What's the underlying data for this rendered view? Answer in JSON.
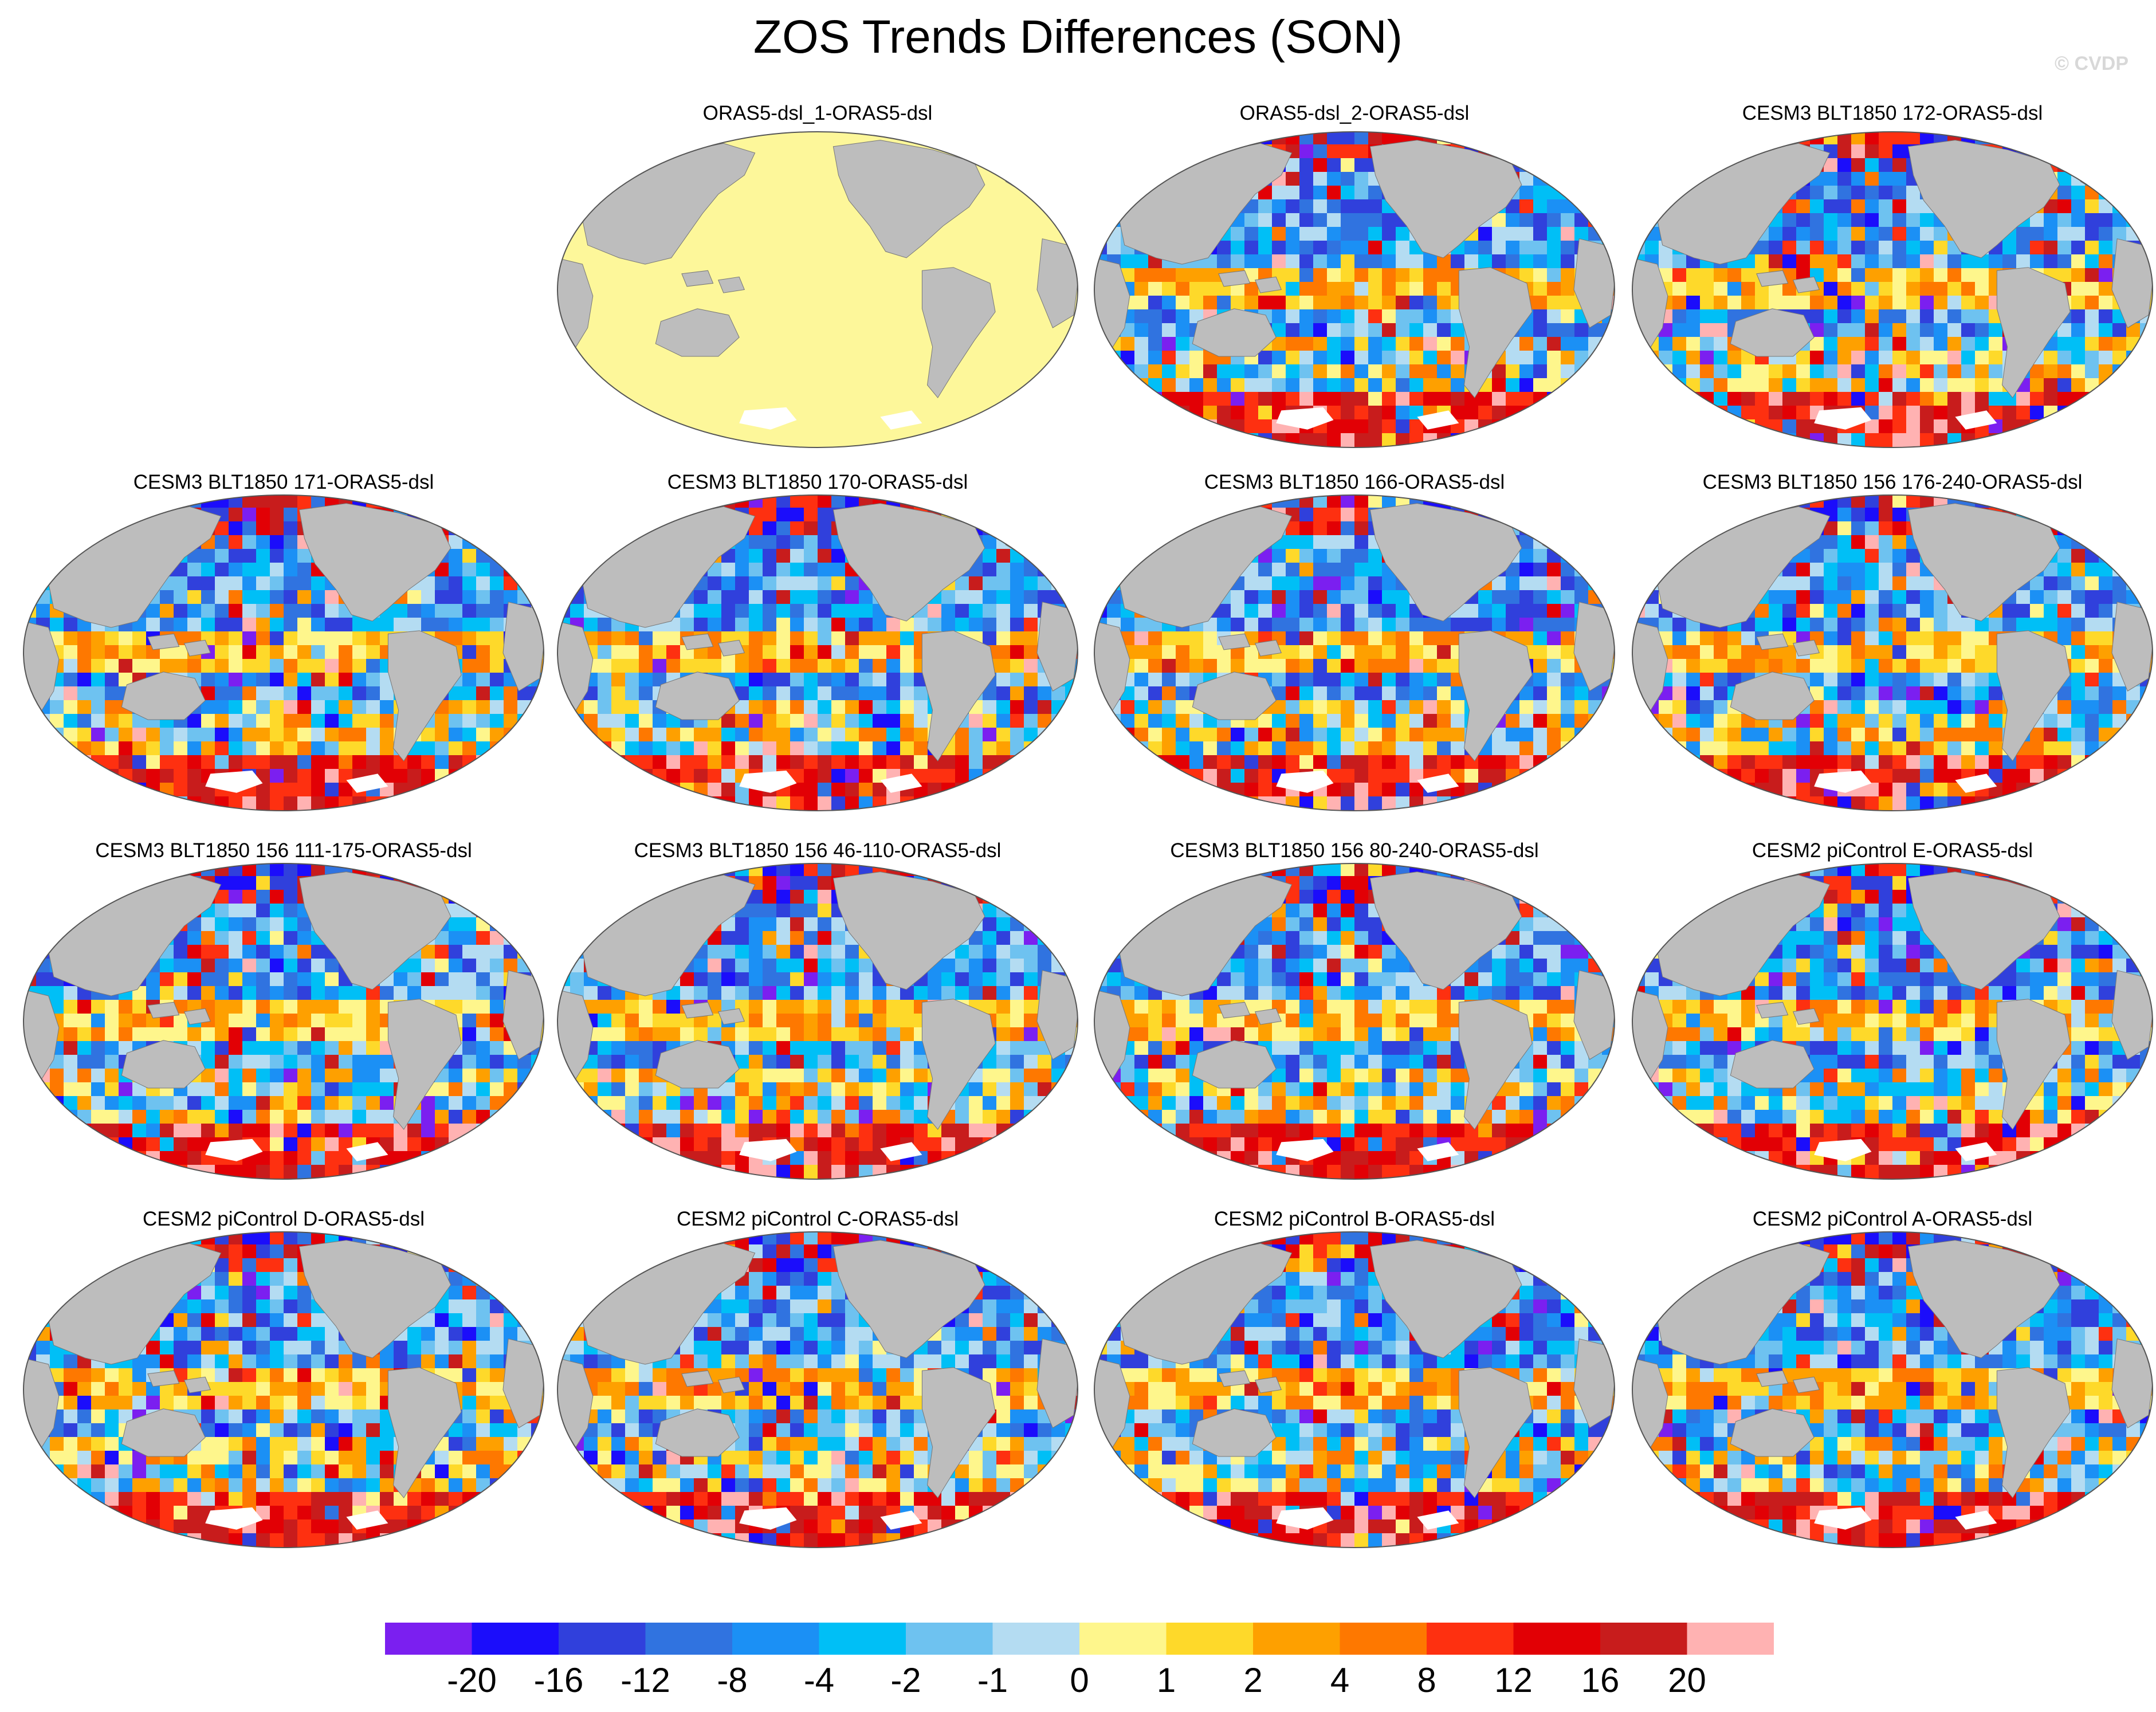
{
  "title": "ZOS Trends Differences (SON)",
  "watermark": "© CVDP",
  "panels": [
    {
      "id": "p01",
      "title": "ORAS5-dsl_1-ORAS5-dsl",
      "style": "flat"
    },
    {
      "id": "p02",
      "title": "ORAS5-dsl_2-ORAS5-dsl",
      "style": "mixed"
    },
    {
      "id": "p03",
      "title": "CESM3 BLT1850 172-ORAS5-dsl",
      "style": "mixed"
    },
    {
      "id": "p04",
      "title": "CESM3 BLT1850 171-ORAS5-dsl",
      "style": "mixed"
    },
    {
      "id": "p05",
      "title": "CESM3 BLT1850 170-ORAS5-dsl",
      "style": "mixed"
    },
    {
      "id": "p06",
      "title": "CESM3 BLT1850 166-ORAS5-dsl",
      "style": "mixed"
    },
    {
      "id": "p07",
      "title": "CESM3 BLT1850 156 176-240-ORAS5-dsl",
      "style": "mixed"
    },
    {
      "id": "p08",
      "title": "CESM3 BLT1850 156 111-175-ORAS5-dsl",
      "style": "mixed"
    },
    {
      "id": "p09",
      "title": "CESM3 BLT1850 156 46-110-ORAS5-dsl",
      "style": "mixed"
    },
    {
      "id": "p10",
      "title": "CESM3 BLT1850 156 80-240-ORAS5-dsl",
      "style": "mixed"
    },
    {
      "id": "p11",
      "title": "CESM2 piControl E-ORAS5-dsl",
      "style": "mixed"
    },
    {
      "id": "p12",
      "title": "CESM2 piControl D-ORAS5-dsl",
      "style": "mixed"
    },
    {
      "id": "p13",
      "title": "CESM2 piControl C-ORAS5-dsl",
      "style": "mixed"
    },
    {
      "id": "p14",
      "title": "CESM2 piControl B-ORAS5-dsl",
      "style": "mixed"
    },
    {
      "id": "p15",
      "title": "CESM2 piControl A-ORAS5-dsl",
      "style": "mixed"
    }
  ],
  "colorbar": {
    "colors": [
      "#7b1ff0",
      "#1b0dfb",
      "#3040dc",
      "#3073e0",
      "#1b90f5",
      "#00bff6",
      "#6ec2f0",
      "#b4dcf2",
      "#fef68c",
      "#fed92a",
      "#fea000",
      "#fe7800",
      "#fe3010",
      "#e20005",
      "#c81c1c",
      "#ffb2b2"
    ],
    "labels": [
      "-20",
      "-16",
      "-12",
      "-8",
      "-4",
      "-2",
      "-1",
      "0",
      "1",
      "2",
      "4",
      "8",
      "12",
      "16",
      "20"
    ]
  },
  "colors": {
    "land": "#bdbdbd",
    "flat_ocean": "#fdf79a",
    "ice": "#ffffff"
  }
}
